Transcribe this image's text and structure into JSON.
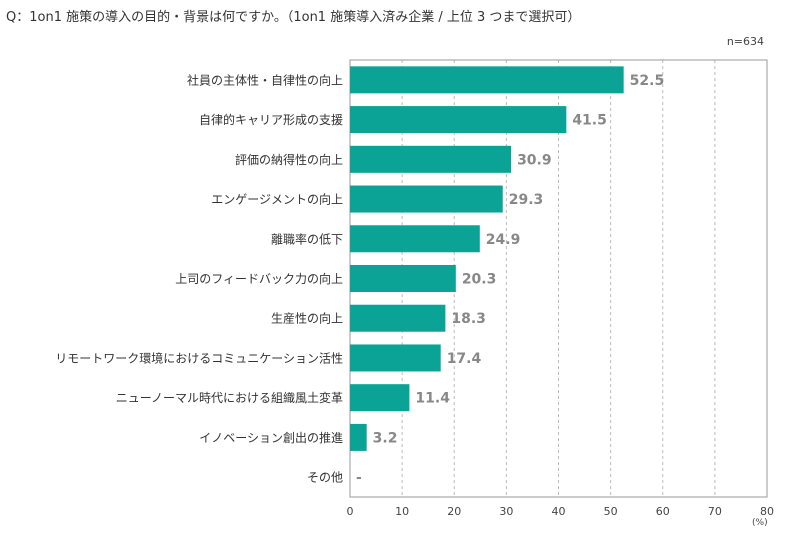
{
  "question": "Q：1on1 施策の導入の目的・背景は何ですか。（1on1 施策導入済み企業 / 上位 3 つまで選択可）",
  "sample_size": "n=634",
  "unit": "(%)",
  "colors": {
    "bar": "#0aa395",
    "value_label": "#888888",
    "grid": "#bbbbbb",
    "frame": "#999999"
  },
  "chart_data": {
    "type": "bar",
    "orientation": "horizontal",
    "categories": [
      "社員の主体性・自律性の向上",
      "自律的キャリア形成の支援",
      "評価の納得性の向上",
      "エンゲージメントの向上",
      "離職率の低下",
      "上司のフィードバック力の向上",
      "生産性の向上",
      "リモートワーク環境におけるコミュニケーション活性",
      "ニューノーマル時代における組織風土変革",
      "イノベーション創出の推進",
      "その他"
    ],
    "values": [
      52.5,
      41.5,
      30.9,
      29.3,
      24.9,
      20.3,
      18.3,
      17.4,
      11.4,
      3.2,
      null
    ],
    "value_labels": [
      "52.5",
      "41.5",
      "30.9",
      "29.3",
      "24.9",
      "20.3",
      "18.3",
      "17.4",
      "11.4",
      "3.2",
      "-"
    ],
    "xlim": [
      0,
      80
    ],
    "xticks": [
      0,
      10,
      20,
      30,
      40,
      50,
      60,
      70,
      80
    ],
    "grid": "dashed vertical"
  }
}
